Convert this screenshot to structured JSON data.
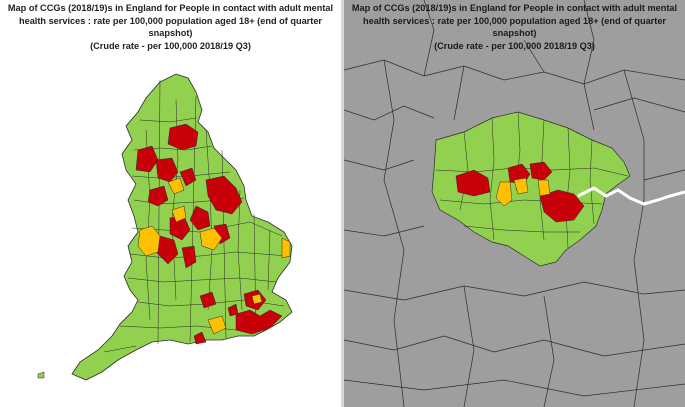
{
  "map_left": {
    "title_line1": "Map of CCGs (2018/19)s in England for People in contact with adult mental",
    "title_line2": "health services : rate per 100,000 population aged 18+ (end of quarter",
    "title_line3": "snapshot)",
    "subtitle": "(Crude rate - per 100,000 2018/19 Q3)"
  },
  "map_right": {
    "title_line1": "Map of CCGs (2018/19)s in England for People in contact with adult mental",
    "title_line2": "health services : rate per 100,000 population aged 18+ (end of quarter",
    "title_line3": "snapshot)",
    "subtitle": "(Crude rate - per 100,000 2018/19 Q3)"
  },
  "colors": {
    "high": "#c8000a",
    "mid": "#ffc000",
    "low": "#92d050",
    "background_region": "#9e9e9e",
    "boundary": "#333333",
    "river": "#ffffff"
  }
}
